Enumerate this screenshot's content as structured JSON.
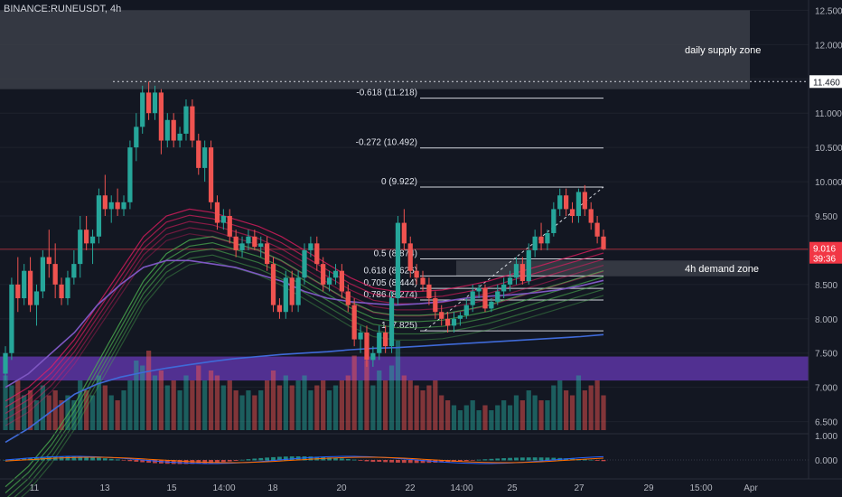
{
  "chart_data": {
    "type": "candlestick",
    "ticker": "BINANCE:RUNEUSDT, 4h",
    "price_axis": {
      "ticks": [
        "12.500",
        "12.000",
        "11.500",
        "11.000",
        "10.500",
        "10.000",
        "9.500",
        "9.000",
        "8.500",
        "8.000",
        "7.500",
        "7.000",
        "6.500"
      ],
      "range": [
        6.35,
        12.65
      ]
    },
    "time_axis": {
      "ticks": [
        "11",
        "13",
        "15",
        "14:00",
        "18",
        "20",
        "22",
        "14:00",
        "25",
        "27",
        "29",
        "15:00",
        "Apr"
      ]
    },
    "current_price": {
      "value": 9.016,
      "label": "9.016",
      "countdown": "39:36",
      "color": "#f23645"
    },
    "level_marker": {
      "value": 11.46,
      "label": "11.460"
    },
    "zones": [
      {
        "label": "daily supply zone",
        "top": 12.5,
        "bottom": 11.35,
        "color": "#3b3e48"
      },
      {
        "label": "4h demand zone",
        "top": 8.85,
        "bottom": 8.62,
        "color": "#3b3e48"
      },
      {
        "label": "",
        "top": 7.45,
        "bottom": 7.1,
        "color": "#673ab7"
      }
    ],
    "fib_levels": [
      {
        "label": "-0.618 (11.218)",
        "value": 11.218
      },
      {
        "label": "-0.272 (10.492)",
        "value": 10.492
      },
      {
        "label": "0 (9.922)",
        "value": 9.922
      },
      {
        "label": "0.5 (8.874)",
        "value": 8.874
      },
      {
        "label": "0.618 (8.626)",
        "value": 8.626
      },
      {
        "label": "0.705 (8.444)",
        "value": 8.444
      },
      {
        "label": "0.786 (8.274)",
        "value": 8.274
      },
      {
        "label": "1 (7.825)",
        "value": 7.825
      }
    ],
    "candles": [
      [
        7.2,
        7.6,
        7.1,
        7.5
      ],
      [
        7.5,
        8.6,
        7.4,
        8.5
      ],
      [
        8.5,
        8.9,
        8.1,
        8.3
      ],
      [
        8.3,
        8.8,
        8.2,
        8.7
      ],
      [
        8.7,
        8.9,
        8.1,
        8.2
      ],
      [
        8.2,
        8.5,
        7.9,
        8.4
      ],
      [
        8.4,
        9.0,
        8.3,
        8.9
      ],
      [
        8.9,
        9.3,
        8.6,
        8.8
      ],
      [
        8.8,
        9.1,
        8.3,
        8.5
      ],
      [
        8.5,
        8.6,
        8.2,
        8.3
      ],
      [
        8.3,
        8.7,
        8.2,
        8.6
      ],
      [
        8.6,
        9.0,
        8.5,
        8.8
      ],
      [
        8.8,
        9.5,
        8.6,
        9.3
      ],
      [
        9.3,
        9.5,
        9.0,
        9.1
      ],
      [
        9.1,
        9.3,
        8.8,
        9.2
      ],
      [
        9.2,
        9.9,
        9.1,
        9.8
      ],
      [
        9.8,
        10.1,
        9.5,
        9.6
      ],
      [
        9.6,
        9.8,
        9.4,
        9.7
      ],
      [
        9.7,
        9.9,
        9.5,
        9.6
      ],
      [
        9.6,
        9.8,
        9.5,
        9.7
      ],
      [
        9.7,
        10.6,
        9.6,
        10.5
      ],
      [
        10.5,
        11.0,
        10.3,
        10.8
      ],
      [
        10.8,
        11.4,
        10.7,
        11.3
      ],
      [
        11.3,
        11.46,
        10.9,
        11.0
      ],
      [
        11.0,
        11.4,
        10.9,
        11.3
      ],
      [
        11.3,
        11.35,
        10.4,
        10.6
      ],
      [
        10.6,
        11.0,
        10.5,
        10.9
      ],
      [
        10.9,
        11.0,
        10.5,
        10.6
      ],
      [
        10.6,
        10.8,
        10.5,
        10.7
      ],
      [
        10.7,
        11.2,
        10.6,
        11.1
      ],
      [
        11.1,
        11.2,
        10.5,
        10.6
      ],
      [
        10.6,
        10.7,
        10.1,
        10.2
      ],
      [
        10.2,
        10.6,
        10.0,
        10.5
      ],
      [
        10.5,
        10.6,
        9.6,
        9.7
      ],
      [
        9.7,
        9.8,
        9.3,
        9.4
      ],
      [
        9.4,
        9.6,
        9.3,
        9.5
      ],
      [
        9.5,
        9.6,
        9.1,
        9.2
      ],
      [
        9.2,
        9.3,
        8.9,
        9.0
      ],
      [
        9.0,
        9.2,
        8.9,
        9.1
      ],
      [
        9.1,
        9.3,
        9.0,
        9.2
      ],
      [
        9.2,
        9.3,
        9.0,
        9.05
      ],
      [
        9.05,
        9.2,
        8.9,
        9.1
      ],
      [
        9.1,
        9.2,
        8.7,
        8.8
      ],
      [
        8.8,
        8.9,
        8.1,
        8.2
      ],
      [
        8.2,
        8.3,
        8.0,
        8.1
      ],
      [
        8.1,
        8.7,
        8.0,
        8.6
      ],
      [
        8.6,
        8.7,
        8.1,
        8.2
      ],
      [
        8.2,
        8.7,
        8.1,
        8.6
      ],
      [
        8.6,
        9.1,
        8.5,
        9.0
      ],
      [
        9.0,
        9.2,
        8.9,
        9.1
      ],
      [
        9.1,
        9.2,
        8.7,
        8.8
      ],
      [
        8.8,
        8.9,
        8.4,
        8.5
      ],
      [
        8.5,
        8.7,
        8.4,
        8.6
      ],
      [
        8.6,
        8.8,
        8.5,
        8.7
      ],
      [
        8.7,
        8.8,
        8.3,
        8.4
      ],
      [
        8.4,
        8.5,
        8.1,
        8.2
      ],
      [
        8.2,
        8.3,
        7.6,
        7.7
      ],
      [
        7.7,
        7.9,
        7.5,
        7.8
      ],
      [
        7.8,
        7.9,
        7.3,
        7.4
      ],
      [
        7.4,
        7.6,
        7.3,
        7.5
      ],
      [
        7.5,
        7.9,
        7.4,
        7.8
      ],
      [
        7.8,
        7.9,
        7.5,
        7.6
      ],
      [
        7.6,
        8.4,
        7.5,
        8.3
      ],
      [
        8.3,
        9.5,
        8.2,
        9.4
      ],
      [
        9.4,
        9.6,
        9.0,
        9.1
      ],
      [
        9.1,
        9.2,
        8.6,
        8.7
      ],
      [
        8.7,
        8.8,
        8.5,
        8.6
      ],
      [
        8.6,
        8.7,
        8.4,
        8.5
      ],
      [
        8.5,
        8.6,
        8.2,
        8.3
      ],
      [
        8.3,
        8.4,
        8.0,
        8.1
      ],
      [
        8.1,
        8.2,
        7.9,
        8.0
      ],
      [
        8.0,
        8.1,
        7.8,
        7.9
      ],
      [
        7.9,
        8.1,
        7.8,
        8.0
      ],
      [
        8.0,
        8.1,
        7.9,
        8.05
      ],
      [
        8.05,
        8.3,
        8.0,
        8.2
      ],
      [
        8.2,
        8.5,
        8.1,
        8.4
      ],
      [
        8.4,
        8.5,
        8.3,
        8.45
      ],
      [
        8.45,
        8.5,
        8.1,
        8.15
      ],
      [
        8.15,
        8.3,
        8.1,
        8.25
      ],
      [
        8.25,
        8.5,
        8.2,
        8.4
      ],
      [
        8.4,
        8.6,
        8.3,
        8.5
      ],
      [
        8.5,
        8.7,
        8.4,
        8.6
      ],
      [
        8.6,
        8.9,
        8.5,
        8.8
      ],
      [
        8.8,
        8.9,
        8.5,
        8.55
      ],
      [
        8.55,
        9.1,
        8.5,
        9.0
      ],
      [
        9.0,
        9.3,
        8.9,
        9.2
      ],
      [
        9.2,
        9.4,
        9.0,
        9.1
      ],
      [
        9.1,
        9.3,
        9.0,
        9.25
      ],
      [
        9.25,
        9.7,
        9.2,
        9.6
      ],
      [
        9.6,
        9.9,
        9.5,
        9.8
      ],
      [
        9.8,
        9.9,
        9.5,
        9.6
      ],
      [
        9.6,
        9.7,
        9.4,
        9.5
      ],
      [
        9.5,
        9.9,
        9.4,
        9.85
      ],
      [
        9.85,
        9.95,
        9.5,
        9.6
      ],
      [
        9.6,
        9.7,
        9.3,
        9.4
      ],
      [
        9.4,
        9.5,
        9.1,
        9.2
      ],
      [
        9.2,
        9.3,
        9.0,
        9.016
      ]
    ],
    "volume": [
      0.55,
      0.45,
      0.5,
      0.35,
      0.4,
      0.3,
      0.45,
      0.35,
      0.4,
      0.3,
      0.35,
      0.3,
      0.5,
      0.4,
      0.35,
      0.55,
      0.45,
      0.35,
      0.3,
      0.4,
      0.5,
      0.7,
      0.65,
      0.8,
      0.55,
      0.6,
      0.45,
      0.5,
      0.4,
      0.55,
      0.5,
      0.65,
      0.5,
      0.6,
      0.55,
      0.45,
      0.5,
      0.4,
      0.35,
      0.4,
      0.35,
      0.4,
      0.5,
      0.6,
      0.45,
      0.55,
      0.45,
      0.5,
      0.55,
      0.4,
      0.45,
      0.5,
      0.4,
      0.45,
      0.5,
      0.55,
      0.75,
      0.5,
      0.7,
      0.45,
      0.6,
      0.5,
      0.65,
      0.9,
      0.55,
      0.5,
      0.45,
      0.4,
      0.45,
      0.5,
      0.35,
      0.3,
      0.25,
      0.2,
      0.25,
      0.3,
      0.2,
      0.25,
      0.2,
      0.25,
      0.3,
      0.25,
      0.35,
      0.3,
      0.4,
      0.35,
      0.3,
      0.3,
      0.45,
      0.5,
      0.4,
      0.35,
      0.55,
      0.4,
      0.45,
      0.5,
      0.35
    ],
    "ma_lines": [
      {
        "name": "",
        "color": "#7e57c2",
        "values": [
          7.0,
          7.2,
          7.5,
          7.8,
          8.2,
          8.5,
          8.75,
          8.85,
          8.85,
          8.8,
          8.75,
          8.65,
          8.55,
          8.4,
          8.3,
          8.25,
          8.22,
          8.2,
          8.22,
          8.25,
          8.3,
          8.33,
          8.35,
          8.38,
          8.42,
          8.48,
          8.56
        ]
      },
      {
        "name": "",
        "color": "#3f6ad8",
        "values": [
          6.2,
          6.4,
          6.65,
          6.9,
          7.05,
          7.15,
          7.22,
          7.28,
          7.33,
          7.38,
          7.42,
          7.45,
          7.48,
          7.5,
          7.52,
          7.55,
          7.57,
          7.58,
          7.6,
          7.62,
          7.64,
          7.66,
          7.68,
          7.7,
          7.72,
          7.74,
          7.77
        ]
      }
    ],
    "ribbon": {
      "pink_values": [
        6.8,
        7.0,
        7.3,
        7.7,
        8.2,
        8.7,
        9.2,
        9.5,
        9.6,
        9.55,
        9.45,
        9.35,
        9.2,
        9.0,
        8.8,
        8.6,
        8.45,
        8.4,
        8.4,
        8.42,
        8.48,
        8.55,
        8.65,
        8.75,
        8.85,
        8.95,
        9.05
      ]
    },
    "macd": {
      "axis_ticks": [
        "1.000",
        "0.000"
      ]
    }
  }
}
